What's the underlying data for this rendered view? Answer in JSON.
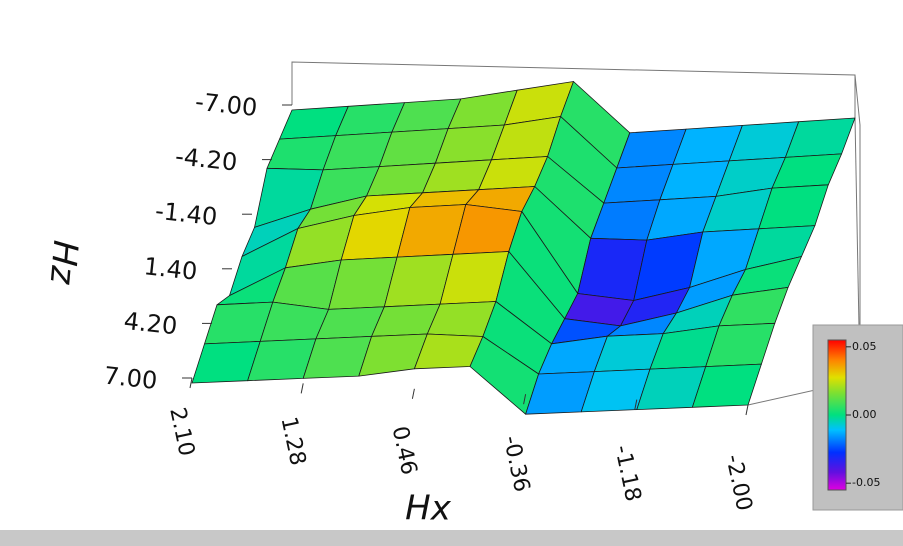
{
  "chart_data": {
    "type": "surface",
    "xlabel": "Hx",
    "ylabel": "Hz",
    "x": [
      2.1,
      1.69,
      1.28,
      0.87,
      0.46,
      0.05,
      -0.36,
      -0.77,
      -1.18,
      -1.59,
      -2.0
    ],
    "y": [
      7,
      5.25,
      3.5,
      1.75,
      0,
      -1.75,
      -3.5,
      -5.25,
      -7
    ],
    "values": [
      [
        -0.005,
        0.0,
        0.005,
        0.01,
        0.02,
        0.025,
        -0.02,
        -0.015,
        -0.01,
        -0.005,
        0.0
      ],
      [
        0.0,
        0.005,
        0.01,
        0.015,
        0.02,
        0.02,
        -0.015,
        -0.01,
        -0.005,
        0.0,
        0.005
      ],
      [
        0.005,
        0.01,
        0.005,
        0.01,
        0.015,
        0.02,
        -0.02,
        -0.01,
        -0.005,
        0.005,
        0.01
      ],
      [
        -0.02,
        0.01,
        0.02,
        0.025,
        0.03,
        0.035,
        -0.03,
        -0.035,
        -0.02,
        0.0,
        0.01
      ],
      [
        -0.015,
        0.015,
        0.03,
        0.04,
        0.045,
        0.04,
        -0.04,
        -0.045,
        -0.03,
        -0.01,
        0.005
      ],
      [
        -0.02,
        0.0,
        0.015,
        0.02,
        0.025,
        0.03,
        -0.02,
        -0.02,
        -0.01,
        -0.005,
        0.0
      ],
      [
        0.005,
        0.005,
        0.01,
        0.015,
        0.02,
        0.025,
        -0.02,
        -0.015,
        -0.01,
        0.0,
        0.005
      ],
      [
        0.0,
        0.005,
        0.01,
        0.015,
        0.02,
        0.03,
        -0.02,
        -0.015,
        -0.01,
        -0.005,
        0.0
      ],
      [
        -0.005,
        0.0,
        0.005,
        0.01,
        0.02,
        0.03,
        -0.02,
        -0.015,
        -0.01,
        -0.005,
        0.0
      ]
    ],
    "xlim": [
      2.1,
      -2.0
    ],
    "xticks": [
      {
        "value": 2.1,
        "label": "2.10"
      },
      1.28,
      0.46,
      -0.36,
      -1.18,
      {
        "value": -2.0,
        "label": "-2.00"
      }
    ],
    "ylim": [
      7,
      -7
    ],
    "yticks": [
      {
        "value": 7,
        "label": "7.00"
      },
      {
        "value": 4.2,
        "label": "4.20"
      },
      {
        "value": 1.4,
        "label": "1.40"
      },
      {
        "value": -1.4,
        "label": "-1.40"
      },
      {
        "value": -4.2,
        "label": "-4.20"
      },
      {
        "value": -7,
        "label": "-7.00"
      }
    ],
    "clim": [
      -0.055,
      0.055
    ],
    "cticks": [
      0.05,
      {
        "value": 0,
        "label": "0.00"
      },
      -0.05
    ]
  }
}
